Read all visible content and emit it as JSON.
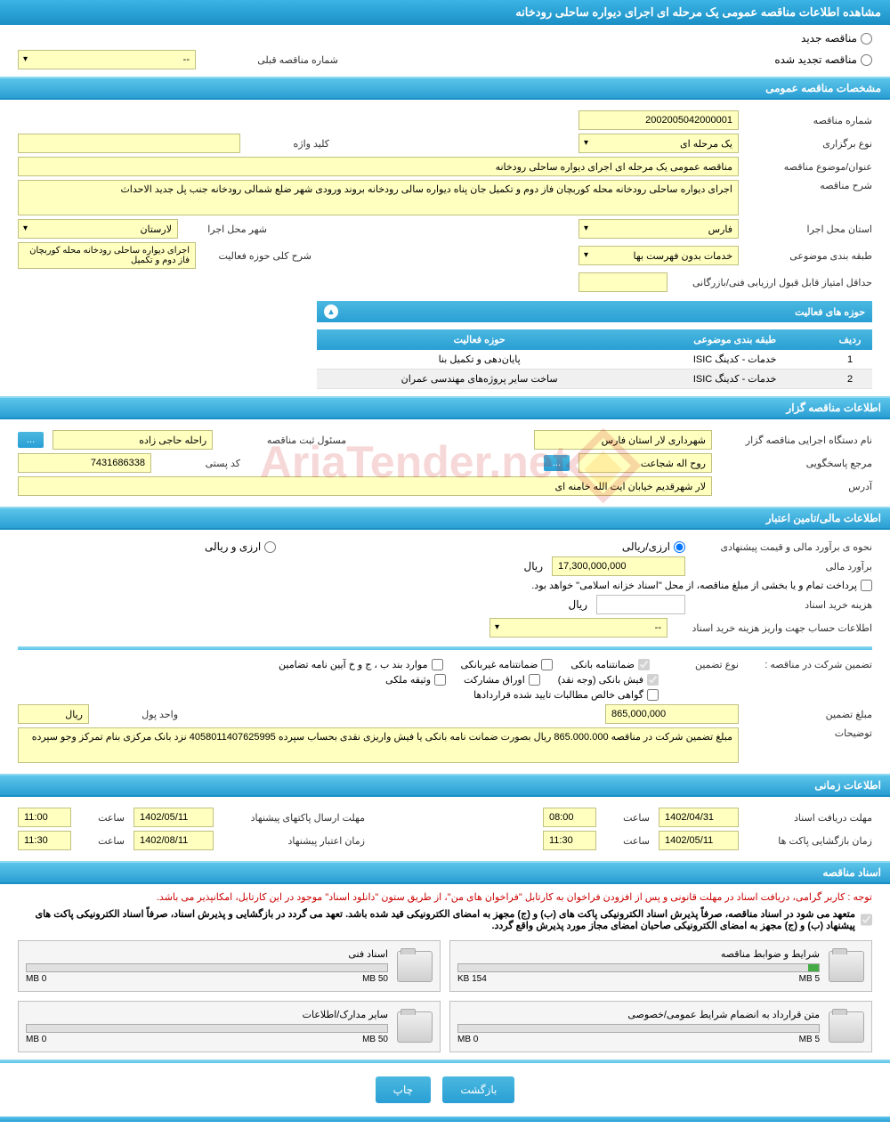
{
  "header": {
    "title": "مشاهده اطلاعات مناقصه عمومی یک مرحله ای اجرای دیواره ساحلی رودخانه"
  },
  "tender_type": {
    "new_label": "مناقصه جدید",
    "renewed_label": "مناقصه تجدید شده",
    "prev_number_label": "شماره مناقصه قبلی",
    "prev_number_value": "--"
  },
  "sections": {
    "general": "مشخصات مناقصه عمومی",
    "organizer": "اطلاعات مناقصه گزار",
    "financial": "اطلاعات مالی/تامین اعتبار",
    "timing": "اطلاعات زمانی",
    "documents": "اسناد مناقصه"
  },
  "general": {
    "tender_number_label": "شماره مناقصه",
    "tender_number": "2002005042000001",
    "type_label": "نوع برگزاری",
    "type_value": "یک مرحله ای",
    "keyword_label": "کلید واژه",
    "keyword_value": "",
    "title_label": "عنوان/موضوع مناقصه",
    "title_value": "مناقصه عمومی یک مرحله ای اجرای دیواره ساحلی رودخانه",
    "description_label": "شرح مناقصه",
    "description_value": "اجرای دیواره ساحلی رودخانه محله کوربچان فاز دوم و تکمیل جان پناه دیواره سالی رودخانه بروند ورودی شهر ضلع شمالی رودخانه جنب پل جدید الاحداث",
    "province_label": "استان محل اجرا",
    "province_value": "فارس",
    "city_label": "شهر محل اجرا",
    "city_value": "لارستان",
    "category_label": "طبقه بندی موضوعی",
    "category_value": "خدمات بدون فهرست بها",
    "activity_desc_label": "شرح کلی حوزه فعالیت",
    "activity_desc_value": "اجرای دیواره ساحلی رودخانه محله کوربچان فاز دوم و تکمیل",
    "min_score_label": "حداقل امتیاز قابل قبول ارزیابی فنی/بازرگانی",
    "min_score_value": ""
  },
  "activities": {
    "panel_title": "حوزه های فعالیت",
    "columns": [
      "ردیف",
      "طبقه بندی موضوعی",
      "حوزه فعالیت"
    ],
    "rows": [
      [
        "1",
        "خدمات - کدینگ ISIC",
        "پایان‌دهی و تکمیل بنا"
      ],
      [
        "2",
        "خدمات - کدینگ ISIC",
        "ساخت سایر پروژه‌های مهندسی عمران"
      ]
    ]
  },
  "organizer": {
    "org_label": "نام دستگاه اجرایی مناقصه گزار",
    "org_value": "شهرداری لار استان فارس",
    "registrar_label": "مسئول ثبت مناقصه",
    "registrar_value": "راحله حاجی زاده",
    "contact_label": "مرجع پاسخگویی",
    "contact_value": "روح اله شجاعت",
    "postal_label": "کد پستی",
    "postal_value": "7431686338",
    "address_label": "آدرس",
    "address_value": "لار شهرقدیم خیابان ایت الله خامنه ای"
  },
  "financial": {
    "method_label": "نحوه ی برآورد مالی و قیمت پیشنهادی",
    "arzi_riali_label": "ارزی/ریالی",
    "arzi_va_riali_label": "ارزی و ریالی",
    "amount_label": "برآورد مالی",
    "amount_value": "17,300,000,000",
    "currency_label": "ریال",
    "payment_note": "پرداخت تمام و یا بخشی از مبلغ مناقصه، از محل \"اسناد خزانه اسلامی\" خواهد بود.",
    "doc_cost_label": "هزینه خرید اسناد",
    "doc_cost_value": "",
    "doc_cost_currency": "ریال",
    "account_label": "اطلاعات حساب جهت واریز هزینه خرید اسناد",
    "account_value": "--",
    "guarantee_label": "تضمین شرکت در مناقصه :",
    "guarantee_type_label": "نوع تضمین",
    "guarantee_types": {
      "bank": "ضمانتنامه بانکی",
      "nonbank": "ضمانتنامه غیربانکی",
      "pardakht": "موارد بند ب ، ج و خ آیین نامه تضامین",
      "fish": "فیش بانکی (وجه نقد)",
      "orag": "اوراق مشارکت",
      "vathige": "وثیقه ملکی",
      "govahi": "گواهی خالص مطالبات تایید شده قراردادها"
    },
    "guarantee_amount_label": "مبلغ تضمین",
    "guarantee_amount": "865,000,000",
    "unit_label": "واحد پول",
    "unit_value": "ریال",
    "notes_label": "توضیحات",
    "notes_value": "مبلغ تضمین شرکت در مناقصه 865.000.000 ریال بصورت ضمانت نامه بانکی یا فیش واریزی نقدی بحساب سپرده 4058011407625995 نزد بانک مرکزی بنام تمرکز وجو سپرده"
  },
  "timing": {
    "receive_label": "مهلت دریافت اسناد",
    "receive_date": "1402/04/31",
    "time_label": "ساعت",
    "receive_time": "08:00",
    "send_label": "مهلت ارسال پاکتهای پیشنهاد",
    "send_date": "1402/05/11",
    "send_time": "11:00",
    "open_label": "زمان بازگشایی پاکت ها",
    "open_date": "1402/05/11",
    "open_time": "11:30",
    "validity_label": "زمان اعتبار پیشنهاد",
    "validity_date": "1402/08/11",
    "validity_time": "11:30"
  },
  "documents": {
    "note1": "توجه : کاربر گرامی، دریافت اسناد در مهلت قانونی و پس از افزودن فراخوان به کارتابل \"فراخوان های من\"، از طریق ستون \"دانلود اسناد\" موجود در این کارتابل، امکانپذیر می باشد.",
    "note2": "متعهد می شود در اسناد مناقصه، صرفاً پذیرش اسناد الکترونیکی پاکت های (ب) و (ج) مجهز به امضای الکترونیکی قید شده باشد. تعهد می گردد در بازگشایی و پذیرش اسناد، صرفاً اسناد الکترونیکی پاکت های پیشنهاد (ب) و (ج) مجهز به امضای الکترونیکی صاحبان امضای مجاز مورد پذیرش واقع گردد.",
    "cards": [
      {
        "title": "شرایط و ضوابط مناقصه",
        "used": "154 KB",
        "total": "5 MB",
        "fill": 3
      },
      {
        "title": "اسناد فنی",
        "used": "0 MB",
        "total": "50 MB",
        "fill": 0
      },
      {
        "title": "متن قرارداد به انضمام شرایط عمومی/خصوصی",
        "used": "0 MB",
        "total": "5 MB",
        "fill": 0
      },
      {
        "title": "سایر مدارک/اطلاعات",
        "used": "0 MB",
        "total": "50 MB",
        "fill": 0
      }
    ]
  },
  "actions": {
    "back": "بازگشت",
    "print": "چاپ"
  },
  "more_btn": "..."
}
